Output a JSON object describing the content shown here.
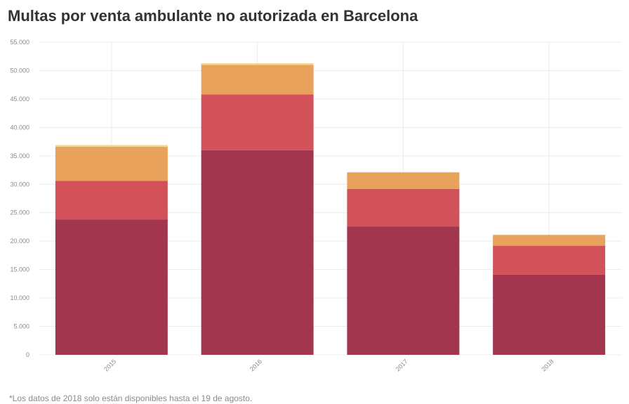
{
  "title": "Multas por venta ambulante no autorizada en Barcelona",
  "footnote": "*Los datos de 2018 solo están disponibles hasta el 19 de agosto.",
  "colors": {
    "series1": "#a3364f",
    "series2": "#d3525a",
    "series3": "#e9a25c",
    "series4": "#f5d58a",
    "grid": "#ececec"
  },
  "chart_data": {
    "type": "bar",
    "stacked": true,
    "categories": [
      "2015",
      "2016",
      "2017",
      "2018"
    ],
    "series": [
      {
        "values": [
          23800,
          36000,
          22600,
          14100
        ]
      },
      {
        "values": [
          6800,
          9800,
          6600,
          5100
        ]
      },
      {
        "values": [
          6000,
          5200,
          2900,
          1900
        ]
      },
      {
        "values": [
          300,
          300,
          0,
          0
        ]
      }
    ],
    "ylim": [
      0,
      55000
    ],
    "yticks": [
      0,
      5000,
      10000,
      15000,
      20000,
      25000,
      30000,
      35000,
      40000,
      45000,
      50000,
      55000
    ],
    "ytick_labels": [
      "0",
      "5.000",
      "10.000",
      "15.000",
      "20.000",
      "25.000",
      "30.000",
      "35.000",
      "40.000",
      "45.000",
      "50.000",
      "55.000"
    ],
    "xlabel": "",
    "ylabel": "",
    "grid": true,
    "legend": false
  }
}
